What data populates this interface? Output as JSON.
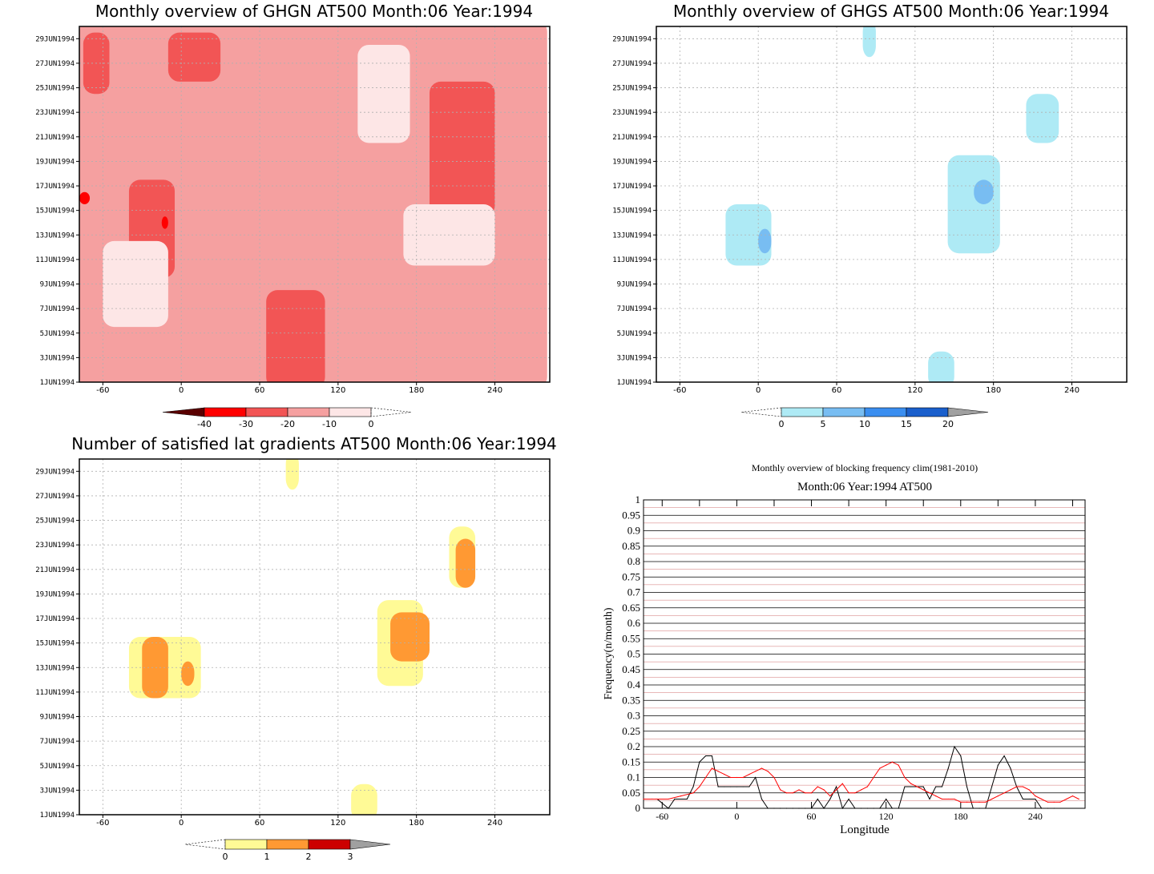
{
  "chart_data": [
    {
      "type": "heatmap",
      "title": "Monthly overview of GHGN AT500 Month:06 Year:1994",
      "x_ticks": [
        "-60",
        "0",
        "60",
        "120",
        "180",
        "240"
      ],
      "y_ticks": [
        "1JUN1994",
        "3JUN1994",
        "5JUN1994",
        "7JUN1994",
        "9JUN1994",
        "11JUN1994",
        "13JUN1994",
        "15JUN1994",
        "17JUN1994",
        "19JUN1994",
        "21JUN1994",
        "23JUN1994",
        "25JUN1994",
        "27JUN1994",
        "29JUN1994"
      ],
      "colorbar": {
        "labels": [
          "-40",
          "-30",
          "-20",
          "-10",
          "0"
        ],
        "colors": [
          "#5a0000",
          "#ff0000",
          "#f25555",
          "#f5a0a0",
          "#fde6e6"
        ]
      },
      "regions": [
        {
          "color": "#f5a0a0",
          "lon": [
            -78,
            280
          ],
          "day": [
            1,
            30
          ]
        },
        {
          "color": "#f25555",
          "lon": [
            -40,
            -5
          ],
          "day": [
            10,
            17
          ]
        },
        {
          "color": "#f25555",
          "lon": [
            65,
            110
          ],
          "day": [
            1,
            8
          ]
        },
        {
          "color": "#f25555",
          "lon": [
            190,
            240
          ],
          "day": [
            15,
            25
          ]
        },
        {
          "color": "#f25555",
          "lon": [
            -10,
            30
          ],
          "day": [
            26,
            29
          ]
        },
        {
          "color": "#f25555",
          "lon": [
            -75,
            -55
          ],
          "day": [
            25,
            29
          ]
        },
        {
          "color": "#fde6e6",
          "lon": [
            135,
            175
          ],
          "day": [
            21,
            28
          ]
        },
        {
          "color": "#fde6e6",
          "lon": [
            -60,
            -10
          ],
          "day": [
            6,
            12
          ]
        },
        {
          "color": "#fde6e6",
          "lon": [
            170,
            240
          ],
          "day": [
            11,
            15
          ]
        },
        {
          "color": "#ff0000",
          "lon": [
            -78,
            -70
          ],
          "day": [
            16,
            16
          ]
        },
        {
          "color": "#ff0000",
          "lon": [
            -15,
            -10
          ],
          "day": [
            14,
            14
          ]
        }
      ]
    },
    {
      "type": "heatmap",
      "title": "Monthly overview of GHGS AT500 Month:06 Year:1994",
      "x_ticks": [
        "-60",
        "0",
        "60",
        "120",
        "180",
        "240"
      ],
      "y_ticks": [
        "1JUN1994",
        "3JUN1994",
        "5JUN1994",
        "7JUN1994",
        "9JUN1994",
        "11JUN1994",
        "13JUN1994",
        "15JUN1994",
        "17JUN1994",
        "19JUN1994",
        "21JUN1994",
        "23JUN1994",
        "25JUN1994",
        "27JUN1994",
        "29JUN1994"
      ],
      "colorbar": {
        "labels": [
          "0",
          "5",
          "10",
          "15",
          "20"
        ],
        "colors": [
          "#aeeaf5",
          "#78bdf2",
          "#3a8ef0",
          "#1a5fcc",
          "#a0a0a0"
        ]
      },
      "regions": [
        {
          "color": "#aeeaf5",
          "lon": [
            -25,
            10
          ],
          "day": [
            11,
            15
          ]
        },
        {
          "color": "#aeeaf5",
          "lon": [
            145,
            185
          ],
          "day": [
            12,
            19
          ]
        },
        {
          "color": "#aeeaf5",
          "lon": [
            205,
            230
          ],
          "day": [
            21,
            24
          ]
        },
        {
          "color": "#aeeaf5",
          "lon": [
            80,
            90
          ],
          "day": [
            28,
            30
          ]
        },
        {
          "color": "#aeeaf5",
          "lon": [
            130,
            150
          ],
          "day": [
            1,
            3
          ]
        },
        {
          "color": "#78bdf2",
          "lon": [
            0,
            10
          ],
          "day": [
            12,
            13
          ]
        },
        {
          "color": "#78bdf2",
          "lon": [
            165,
            180
          ],
          "day": [
            16,
            17
          ]
        }
      ]
    },
    {
      "type": "heatmap",
      "title": "Number of satisfied lat gradients AT500 Month:06 Year:1994",
      "x_ticks": [
        "-60",
        "0",
        "60",
        "120",
        "180",
        "240"
      ],
      "y_ticks": [
        "1JUN1994",
        "3JUN1994",
        "5JUN1994",
        "7JUN1994",
        "9JUN1994",
        "11JUN1994",
        "13JUN1994",
        "15JUN1994",
        "17JUN1994",
        "19JUN1994",
        "21JUN1994",
        "23JUN1994",
        "25JUN1994",
        "27JUN1994",
        "29JUN1994"
      ],
      "colorbar": {
        "labels": [
          "0",
          "1",
          "2",
          "3"
        ],
        "colors": [
          "#fffa96",
          "#ff9933",
          "#cc0000",
          "#a0a0a0"
        ]
      },
      "regions": [
        {
          "color": "#fffa96",
          "lon": [
            -40,
            15
          ],
          "day": [
            11,
            15
          ]
        },
        {
          "color": "#fffa96",
          "lon": [
            150,
            185
          ],
          "day": [
            12,
            18
          ]
        },
        {
          "color": "#fffa96",
          "lon": [
            205,
            225
          ],
          "day": [
            20,
            24
          ]
        },
        {
          "color": "#fffa96",
          "lon": [
            130,
            150
          ],
          "day": [
            1,
            3
          ]
        },
        {
          "color": "#fffa96",
          "lon": [
            80,
            90
          ],
          "day": [
            28,
            30
          ]
        },
        {
          "color": "#ff9933",
          "lon": [
            -30,
            -10
          ],
          "day": [
            11,
            15
          ]
        },
        {
          "color": "#ff9933",
          "lon": [
            0,
            10
          ],
          "day": [
            12,
            13
          ]
        },
        {
          "color": "#ff9933",
          "lon": [
            160,
            190
          ],
          "day": [
            14,
            17
          ]
        },
        {
          "color": "#ff9933",
          "lon": [
            210,
            225
          ],
          "day": [
            20,
            23
          ]
        }
      ]
    },
    {
      "type": "line",
      "title": "Monthly overview of blocking frequency clim(1981-2010)",
      "subtitle": "Month:06 Year:1994  AT500",
      "xlabel": "Longitude",
      "ylabel": "Frequency(n/month)",
      "xlim": [
        -75,
        280
      ],
      "ylim": [
        0,
        1
      ],
      "x_ticks": [
        "-60",
        "0",
        "60",
        "120",
        "180",
        "240"
      ],
      "y_ticks": [
        "0",
        "0.05",
        "0.1",
        "0.15",
        "0.2",
        "0.25",
        "0.3",
        "0.35",
        "0.4",
        "0.45",
        "0.5",
        "0.55",
        "0.6",
        "0.65",
        "0.7",
        "0.75",
        "0.8",
        "0.85",
        "0.9",
        "0.95",
        "1"
      ],
      "series": [
        {
          "color": "#000000",
          "x": [
            -75,
            -68,
            -64,
            -55,
            -50,
            -40,
            -35,
            -30,
            -25,
            -20,
            -15,
            -10,
            -5,
            0,
            5,
            10,
            15,
            20,
            25,
            30,
            35,
            40,
            45,
            50,
            55,
            60,
            65,
            70,
            75,
            80,
            85,
            90,
            95,
            100,
            105,
            110,
            115,
            120,
            125,
            130,
            135,
            140,
            145,
            150,
            155,
            160,
            165,
            170,
            175,
            180,
            185,
            190,
            195,
            200,
            205,
            210,
            215,
            220,
            225,
            230,
            235,
            240,
            245,
            250,
            255
          ],
          "y": [
            0.03,
            0.03,
            0.03,
            0.0,
            0.03,
            0.03,
            0.07,
            0.15,
            0.17,
            0.17,
            0.07,
            0.07,
            0.07,
            0.07,
            0.07,
            0.07,
            0.1,
            0.03,
            0.0,
            0.0,
            0.0,
            0.0,
            0.0,
            0.0,
            0.0,
            0.0,
            0.03,
            0.0,
            0.03,
            0.07,
            0.0,
            0.03,
            0.0,
            0.0,
            0.0,
            0.0,
            0.0,
            0.03,
            0.0,
            0.0,
            0.07,
            0.07,
            0.07,
            0.07,
            0.03,
            0.07,
            0.07,
            0.13,
            0.2,
            0.17,
            0.07,
            0.0,
            0.0,
            0.0,
            0.07,
            0.14,
            0.17,
            0.13,
            0.07,
            0.03,
            0.03,
            0.03,
            0.0,
            0.0,
            0.0
          ]
        },
        {
          "color": "#ff0000",
          "x": [
            -75,
            -65,
            -55,
            -45,
            -35,
            -30,
            -25,
            -20,
            -15,
            -10,
            -5,
            0,
            5,
            10,
            15,
            20,
            25,
            30,
            35,
            40,
            45,
            50,
            55,
            60,
            65,
            70,
            75,
            80,
            85,
            90,
            95,
            100,
            105,
            110,
            115,
            120,
            125,
            130,
            135,
            140,
            145,
            150,
            155,
            160,
            165,
            170,
            175,
            180,
            185,
            190,
            195,
            200,
            205,
            210,
            215,
            220,
            225,
            230,
            235,
            240,
            245,
            250,
            255,
            260,
            265,
            270,
            275
          ],
          "y": [
            0.03,
            0.03,
            0.03,
            0.04,
            0.05,
            0.07,
            0.1,
            0.13,
            0.12,
            0.11,
            0.1,
            0.1,
            0.1,
            0.11,
            0.12,
            0.13,
            0.12,
            0.1,
            0.06,
            0.05,
            0.05,
            0.06,
            0.05,
            0.05,
            0.07,
            0.06,
            0.04,
            0.06,
            0.08,
            0.05,
            0.05,
            0.06,
            0.07,
            0.1,
            0.13,
            0.14,
            0.15,
            0.14,
            0.1,
            0.08,
            0.07,
            0.06,
            0.05,
            0.04,
            0.03,
            0.03,
            0.03,
            0.02,
            0.02,
            0.02,
            0.02,
            0.02,
            0.03,
            0.04,
            0.05,
            0.06,
            0.07,
            0.07,
            0.06,
            0.04,
            0.03,
            0.02,
            0.02,
            0.02,
            0.03,
            0.04,
            0.03
          ]
        }
      ]
    }
  ]
}
